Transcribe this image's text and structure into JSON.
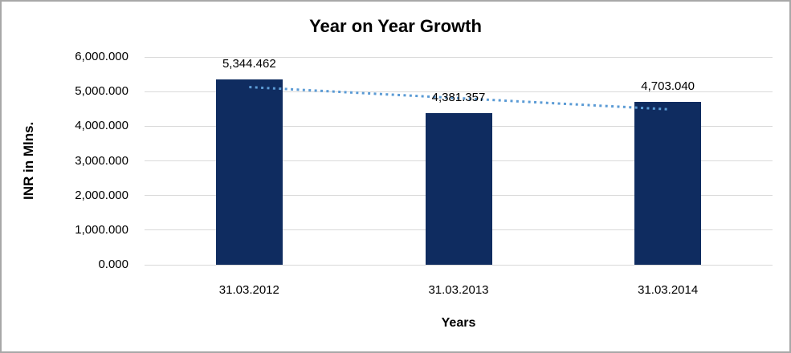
{
  "chart_data": {
    "type": "bar",
    "title": "Year on Year Growth",
    "xlabel": "Years",
    "ylabel": "INR in Mlns.",
    "categories": [
      "31.03.2012",
      "31.03.2013",
      "31.03.2014"
    ],
    "values": [
      5344.462,
      4381.357,
      4703.04
    ],
    "data_labels": [
      "5,344.462",
      "4,381.357",
      "4,703.040"
    ],
    "ylim": [
      0,
      6000
    ],
    "ytick_step": 1000,
    "ytick_labels": [
      "0.000",
      "1,000.000",
      "2,000.000",
      "3,000.000",
      "4,000.000",
      "5,000.000",
      "6,000.000"
    ],
    "grid": true,
    "legend": "none",
    "colors": {
      "bar": "#0f2c60",
      "trendline": "#5b9bd5",
      "gridline": "#d9d9d9",
      "text": "#000000",
      "chart_border": "#a8a8a8",
      "background": "#ffffff"
    },
    "trendline": {
      "kind": "linear",
      "style": "dotted"
    }
  }
}
